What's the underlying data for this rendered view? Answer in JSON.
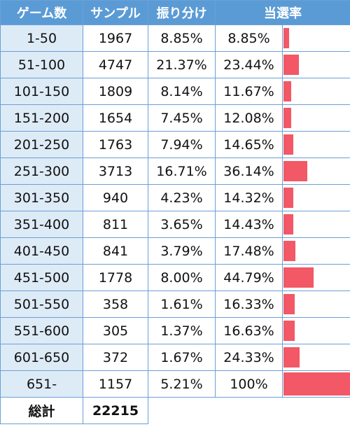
{
  "headers": {
    "games": "ゲーム数",
    "samples": "サンプル",
    "share": "振り分け",
    "rate": "当選率"
  },
  "bar_color": "#f25866",
  "header_color": "#5b9bd5",
  "rows": [
    {
      "games": "1-50",
      "samples": "1967",
      "share": "8.85%",
      "rate": "8.85%",
      "rate_value": 8.85
    },
    {
      "games": "51-100",
      "samples": "4747",
      "share": "21.37%",
      "rate": "23.44%",
      "rate_value": 23.44
    },
    {
      "games": "101-150",
      "samples": "1809",
      "share": "8.14%",
      "rate": "11.67%",
      "rate_value": 11.67
    },
    {
      "games": "151-200",
      "samples": "1654",
      "share": "7.45%",
      "rate": "12.08%",
      "rate_value": 12.08
    },
    {
      "games": "201-250",
      "samples": "1763",
      "share": "7.94%",
      "rate": "14.65%",
      "rate_value": 14.65
    },
    {
      "games": "251-300",
      "samples": "3713",
      "share": "16.71%",
      "rate": "36.14%",
      "rate_value": 36.14
    },
    {
      "games": "301-350",
      "samples": "940",
      "share": "4.23%",
      "rate": "14.32%",
      "rate_value": 14.32
    },
    {
      "games": "351-400",
      "samples": "811",
      "share": "3.65%",
      "rate": "14.43%",
      "rate_value": 14.43
    },
    {
      "games": "401-450",
      "samples": "841",
      "share": "3.79%",
      "rate": "17.48%",
      "rate_value": 17.48
    },
    {
      "games": "451-500",
      "samples": "1778",
      "share": "8.00%",
      "rate": "44.79%",
      "rate_value": 44.79
    },
    {
      "games": "501-550",
      "samples": "358",
      "share": "1.61%",
      "rate": "16.33%",
      "rate_value": 16.33
    },
    {
      "games": "551-600",
      "samples": "305",
      "share": "1.37%",
      "rate": "16.63%",
      "rate_value": 16.63
    },
    {
      "games": "601-650",
      "samples": "372",
      "share": "1.67%",
      "rate": "24.33%",
      "rate_value": 24.33
    },
    {
      "games": "651-",
      "samples": "1157",
      "share": "5.21%",
      "rate": "100%",
      "rate_value": 100
    }
  ],
  "total": {
    "label": "総計",
    "value": "22215"
  }
}
